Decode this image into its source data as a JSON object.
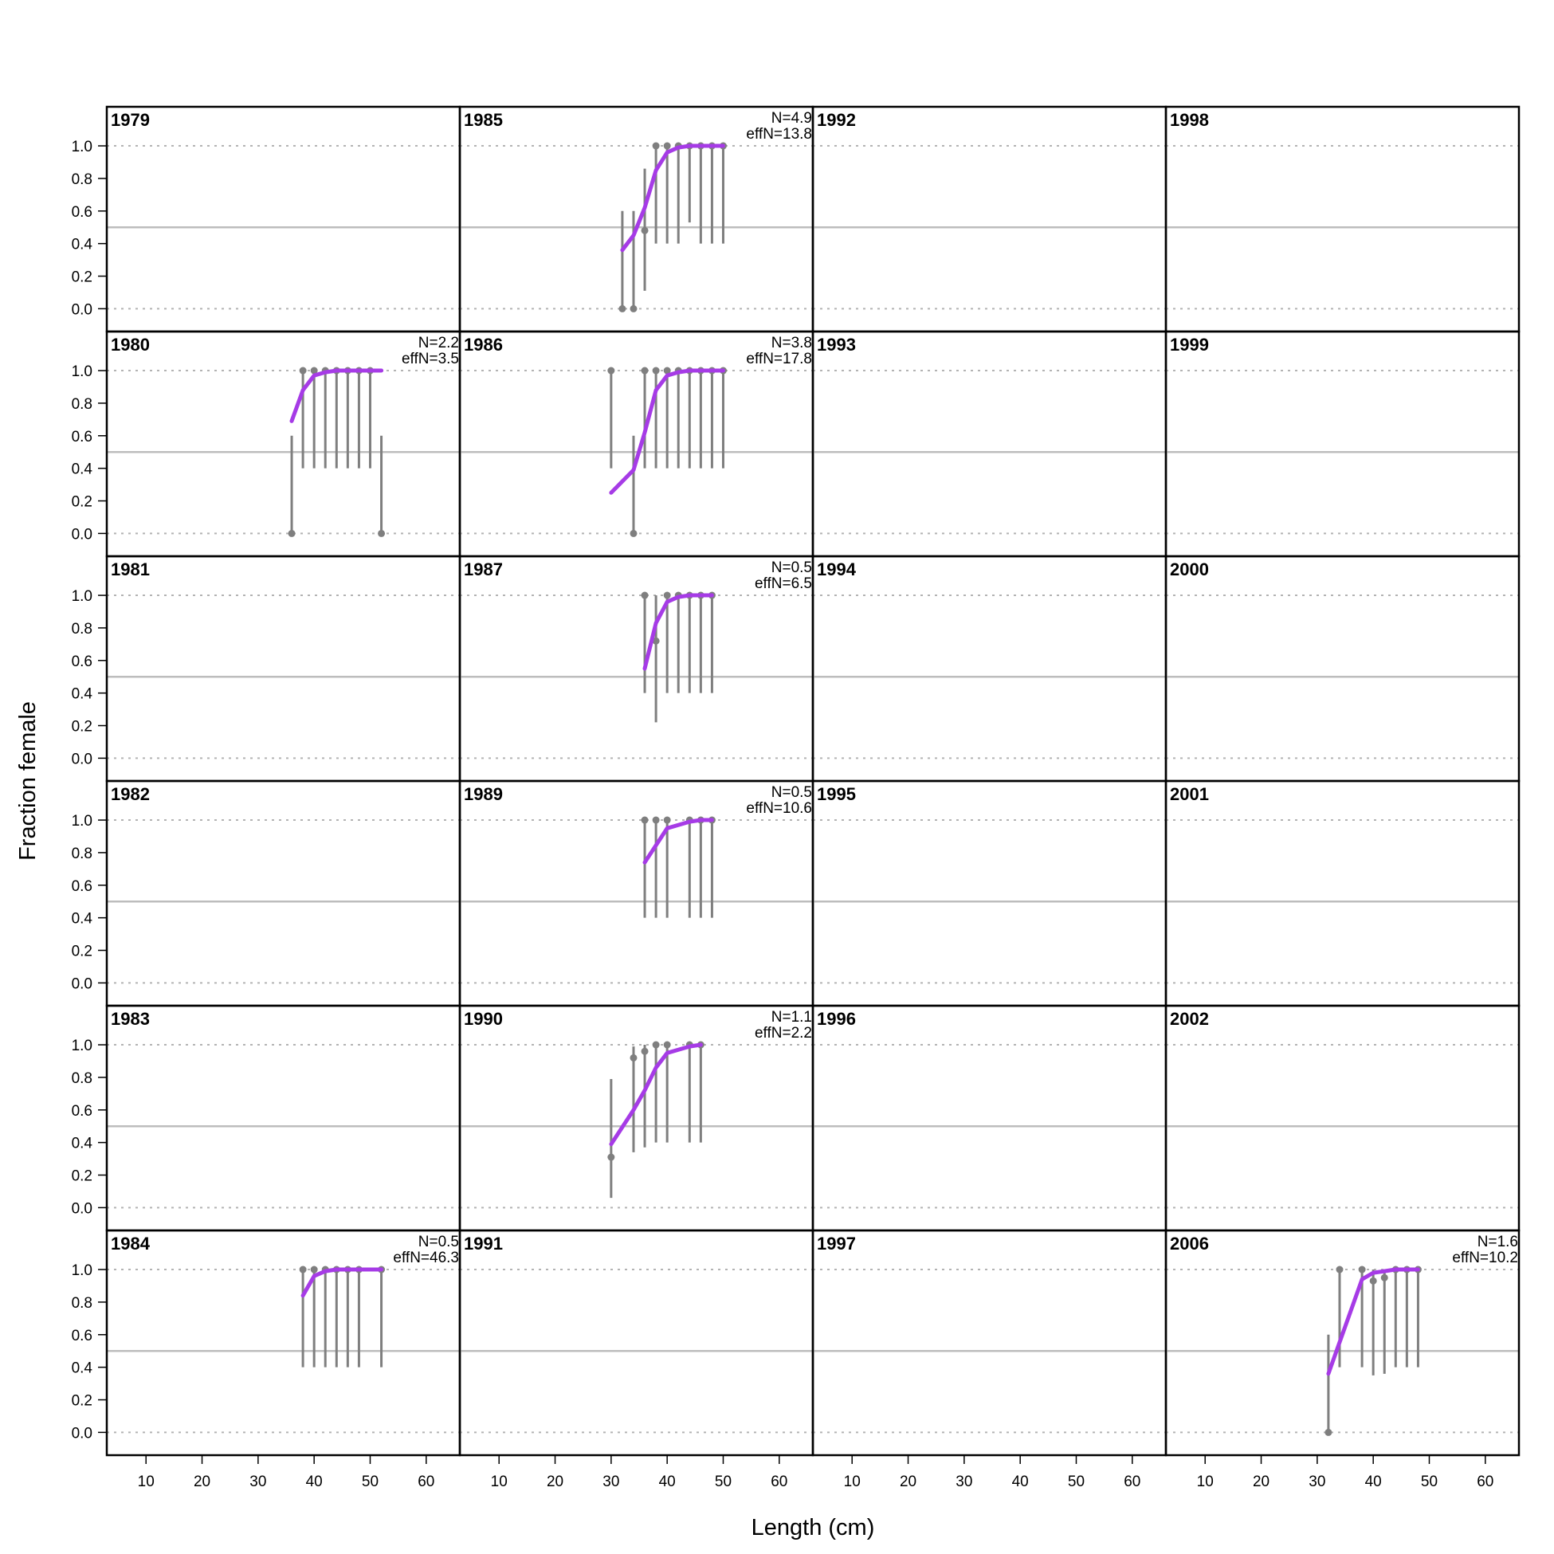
{
  "chart_data": {
    "type": "line",
    "xlabel": "Length (cm)",
    "ylabel": "Fraction female",
    "xlim": [
      3,
      66
    ],
    "ylim": [
      -0.14,
      1.24
    ],
    "x_ticks": [
      10,
      20,
      30,
      40,
      50,
      60
    ],
    "y_ticks": [
      0.0,
      0.2,
      0.4,
      0.6,
      0.8,
      1.0
    ],
    "y_tick_labels": [
      "0.0",
      "0.2",
      "0.4",
      "0.6",
      "0.8",
      "1.0"
    ],
    "x_tick_labels": [
      "10",
      "20",
      "30",
      "40",
      "50",
      "60"
    ],
    "reference_line": 0.5,
    "dotted_lines": [
      0,
      1
    ],
    "colors": {
      "observed": "#7f7f7f",
      "expected": "#a63be6",
      "reference": "#bdbdbd"
    },
    "panels": [
      {
        "year": "1979",
        "col": 0,
        "row": 0
      },
      {
        "year": "1980",
        "col": 0,
        "row": 1,
        "N": "N=2.2",
        "effN": "effN=3.5",
        "obs": [
          [
            36,
            0,
            0,
            0.6
          ],
          [
            38,
            1,
            0.4,
            1
          ],
          [
            40,
            1,
            0.4,
            1
          ],
          [
            42,
            1,
            0.4,
            1
          ],
          [
            44,
            1,
            0.4,
            1
          ],
          [
            46,
            1,
            0.4,
            1
          ],
          [
            48,
            1,
            0.4,
            1
          ],
          [
            50,
            1,
            0.4,
            1
          ],
          [
            52,
            0,
            0,
            0.6
          ]
        ],
        "exp": [
          [
            36,
            0.69
          ],
          [
            38,
            0.88
          ],
          [
            40,
            0.97
          ],
          [
            42,
            0.99
          ],
          [
            44,
            1
          ],
          [
            46,
            1
          ],
          [
            48,
            1
          ],
          [
            50,
            1
          ],
          [
            52,
            1
          ]
        ]
      },
      {
        "year": "1981",
        "col": 0,
        "row": 2
      },
      {
        "year": "1982",
        "col": 0,
        "row": 3
      },
      {
        "year": "1983",
        "col": 0,
        "row": 4
      },
      {
        "year": "1984",
        "col": 0,
        "row": 5,
        "N": "N=0.5",
        "effN": "effN=46.3",
        "obs": [
          [
            38,
            1,
            0.4,
            1
          ],
          [
            40,
            1,
            0.4,
            1
          ],
          [
            42,
            1,
            0.4,
            1
          ],
          [
            44,
            1,
            0.4,
            1
          ],
          [
            46,
            1,
            0.4,
            1
          ],
          [
            48,
            1,
            0.4,
            1
          ],
          [
            52,
            1,
            0.4,
            1
          ]
        ],
        "exp": [
          [
            38,
            0.84
          ],
          [
            40,
            0.96
          ],
          [
            42,
            0.99
          ],
          [
            44,
            1
          ],
          [
            46,
            1
          ],
          [
            48,
            1
          ],
          [
            52,
            1
          ]
        ]
      },
      {
        "year": "1985",
        "col": 1,
        "row": 0,
        "N": "N=4.9",
        "effN": "effN=13.8",
        "obs": [
          [
            32,
            0,
            0,
            0.6
          ],
          [
            34,
            0,
            0,
            0.6
          ],
          [
            36,
            0.48,
            0.11,
            0.86
          ],
          [
            38,
            1,
            0.4,
            1
          ],
          [
            40,
            1,
            0.4,
            1
          ],
          [
            42,
            1,
            0.4,
            1
          ],
          [
            44,
            1,
            0.53,
            1
          ],
          [
            46,
            1,
            0.4,
            1
          ],
          [
            48,
            1,
            0.4,
            1
          ],
          [
            50,
            1,
            0.4,
            1
          ]
        ],
        "exp": [
          [
            32,
            0.36
          ],
          [
            34,
            0.45
          ],
          [
            36,
            0.62
          ],
          [
            38,
            0.85
          ],
          [
            40,
            0.96
          ],
          [
            42,
            0.99
          ],
          [
            44,
            1
          ],
          [
            46,
            1
          ],
          [
            48,
            1
          ],
          [
            50,
            1
          ]
        ]
      },
      {
        "year": "1986",
        "col": 1,
        "row": 1,
        "N": "N=3.8",
        "effN": "effN=17.8",
        "obs": [
          [
            30,
            1,
            0.4,
            1
          ],
          [
            34,
            0,
            0,
            0.6
          ],
          [
            36,
            1,
            0.4,
            1
          ],
          [
            38,
            1,
            0.4,
            1
          ],
          [
            40,
            1,
            0.4,
            1
          ],
          [
            42,
            1,
            0.4,
            1
          ],
          [
            44,
            1,
            0.4,
            1
          ],
          [
            46,
            1,
            0.4,
            1
          ],
          [
            48,
            1,
            0.4,
            1
          ],
          [
            50,
            1,
            0.4,
            1
          ]
        ],
        "exp": [
          [
            30,
            0.25
          ],
          [
            34,
            0.39
          ],
          [
            36,
            0.62
          ],
          [
            38,
            0.88
          ],
          [
            40,
            0.97
          ],
          [
            42,
            0.99
          ],
          [
            44,
            1
          ],
          [
            46,
            1
          ],
          [
            48,
            1
          ],
          [
            50,
            1
          ]
        ]
      },
      {
        "year": "1987",
        "col": 1,
        "row": 2,
        "N": "N=0.5",
        "effN": "effN=6.5",
        "obs": [
          [
            36,
            1,
            0.4,
            1
          ],
          [
            38,
            0.72,
            0.22,
            1
          ],
          [
            40,
            1,
            0.4,
            1
          ],
          [
            42,
            1,
            0.4,
            1
          ],
          [
            44,
            1,
            0.4,
            1
          ],
          [
            46,
            1,
            0.4,
            1
          ],
          [
            48,
            1,
            0.4,
            1
          ]
        ],
        "exp": [
          [
            36,
            0.55
          ],
          [
            38,
            0.83
          ],
          [
            40,
            0.96
          ],
          [
            42,
            0.99
          ],
          [
            44,
            1
          ],
          [
            46,
            1
          ],
          [
            48,
            1
          ]
        ]
      },
      {
        "year": "1989",
        "col": 1,
        "row": 3,
        "N": "N=0.5",
        "effN": "effN=10.6",
        "obs": [
          [
            36,
            1,
            0.4,
            1
          ],
          [
            38,
            1,
            0.4,
            1
          ],
          [
            40,
            1,
            0.4,
            1
          ],
          [
            44,
            1,
            0.4,
            1
          ],
          [
            46,
            1,
            0.4,
            1
          ],
          [
            48,
            1,
            0.4,
            1
          ]
        ],
        "exp": [
          [
            36,
            0.74
          ],
          [
            40,
            0.95
          ],
          [
            44,
            0.99
          ],
          [
            46,
            1
          ],
          [
            48,
            1
          ]
        ]
      },
      {
        "year": "1990",
        "col": 1,
        "row": 4,
        "N": "N=1.1",
        "effN": "effN=2.2",
        "obs": [
          [
            30,
            0.31,
            0.06,
            0.79
          ],
          [
            34,
            0.92,
            0.34,
            0.99
          ],
          [
            36,
            0.96,
            0.37,
            1
          ],
          [
            38,
            1,
            0.4,
            1
          ],
          [
            40,
            1,
            0.4,
            1
          ],
          [
            44,
            1,
            0.4,
            1
          ],
          [
            46,
            1,
            0.4,
            1
          ]
        ],
        "exp": [
          [
            30,
            0.39
          ],
          [
            34,
            0.6
          ],
          [
            36,
            0.72
          ],
          [
            38,
            0.86
          ],
          [
            40,
            0.95
          ],
          [
            44,
            0.99
          ],
          [
            46,
            1
          ]
        ]
      },
      {
        "year": "1991",
        "col": 1,
        "row": 5
      },
      {
        "year": "1992",
        "col": 2,
        "row": 0
      },
      {
        "year": "1993",
        "col": 2,
        "row": 1
      },
      {
        "year": "1994",
        "col": 2,
        "row": 2
      },
      {
        "year": "1995",
        "col": 2,
        "row": 3
      },
      {
        "year": "1996",
        "col": 2,
        "row": 4
      },
      {
        "year": "1997",
        "col": 2,
        "row": 5
      },
      {
        "year": "1998",
        "col": 3,
        "row": 0
      },
      {
        "year": "1999",
        "col": 3,
        "row": 1
      },
      {
        "year": "2000",
        "col": 3,
        "row": 2
      },
      {
        "year": "2001",
        "col": 3,
        "row": 3
      },
      {
        "year": "2002",
        "col": 3,
        "row": 4
      },
      {
        "year": "2006",
        "col": 3,
        "row": 5,
        "N": "N=1.6",
        "effN": "effN=10.2",
        "obs": [
          [
            32,
            0,
            0,
            0.6
          ],
          [
            34,
            1,
            0.4,
            1
          ],
          [
            38,
            1,
            0.4,
            1
          ],
          [
            40,
            0.93,
            0.35,
            1
          ],
          [
            42,
            0.95,
            0.36,
            1
          ],
          [
            44,
            1,
            0.4,
            1
          ],
          [
            46,
            1,
            0.4,
            1
          ],
          [
            48,
            1,
            0.4,
            1
          ]
        ],
        "exp": [
          [
            32,
            0.36
          ],
          [
            38,
            0.94
          ],
          [
            40,
            0.98
          ],
          [
            42,
            0.99
          ],
          [
            44,
            1
          ],
          [
            46,
            1
          ],
          [
            48,
            1
          ]
        ]
      }
    ]
  }
}
